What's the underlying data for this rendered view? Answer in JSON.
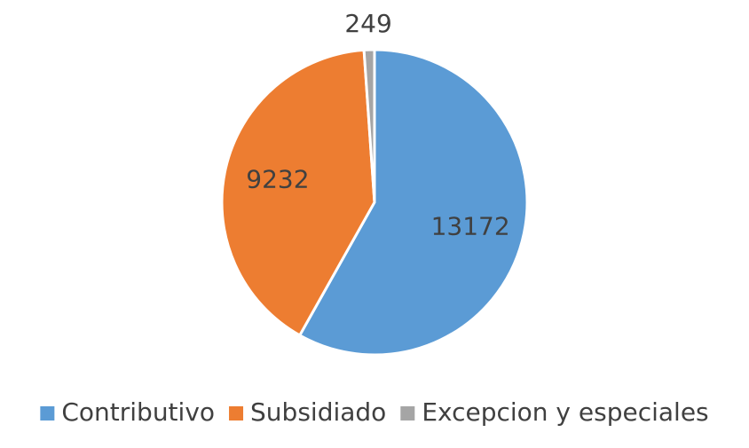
{
  "chart_data": {
    "type": "pie",
    "categories": [
      "Contributivo",
      "Subsidiado",
      "Excepcion y especiales"
    ],
    "values": [
      13172,
      9232,
      249
    ],
    "colors": [
      "#5b9bd5",
      "#ed7d31",
      "#a5a5a5"
    ],
    "legend": "bottom"
  }
}
